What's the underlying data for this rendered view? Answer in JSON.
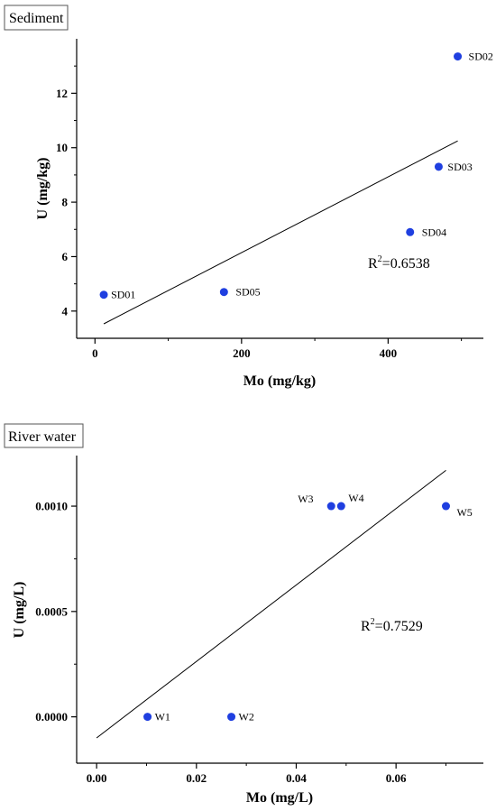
{
  "chart_data": [
    {
      "type": "scatter",
      "panel_label": "Sediment",
      "xlabel": "Mo (mg/kg)",
      "ylabel": "U (mg/kg)",
      "xlim": [
        -25,
        530
      ],
      "ylim": [
        3.0,
        14.0
      ],
      "x_ticks": [
        0,
        200,
        400
      ],
      "x_tick_labels": [
        "0",
        "200",
        "400"
      ],
      "y_ticks": [
        4,
        6,
        8,
        10,
        12
      ],
      "y_tick_labels": [
        "4",
        "6",
        "8",
        "10",
        "12"
      ],
      "points": [
        {
          "label": "SD01",
          "x": 12,
          "y": 4.6
        },
        {
          "label": "SD05",
          "x": 176,
          "y": 4.7
        },
        {
          "label": "SD04",
          "x": 430,
          "y": 6.9
        },
        {
          "label": "SD03",
          "x": 469,
          "y": 9.3
        },
        {
          "label": "SD02",
          "x": 495,
          "y": 13.35
        }
      ],
      "fit_line": {
        "x": [
          12,
          495
        ],
        "y": [
          3.53,
          10.25
        ]
      },
      "r2_prefix": "R",
      "r2_sup": "2",
      "r2_value": "=0.6538",
      "marker_color": "#1f3fe0"
    },
    {
      "type": "scatter",
      "panel_label": "River water",
      "xlabel": "Mo (mg/L)",
      "ylabel": "U (mg/L)",
      "xlim": [
        -0.004,
        0.0775
      ],
      "ylim": [
        -0.00022,
        0.00124
      ],
      "x_ticks": [
        0.0,
        0.02,
        0.04,
        0.06
      ],
      "x_tick_labels": [
        "0.00",
        "0.02",
        "0.04",
        "0.06"
      ],
      "y_ticks": [
        0.0,
        0.0005,
        0.001
      ],
      "y_tick_labels": [
        "0.0000",
        "0.0005",
        "0.0010"
      ],
      "points": [
        {
          "label": "W1",
          "x": 0.0102,
          "y": 0.0
        },
        {
          "label": "W2",
          "x": 0.027,
          "y": 0.0
        },
        {
          "label": "W3",
          "x": 0.047,
          "y": 0.001
        },
        {
          "label": "W4",
          "x": 0.049,
          "y": 0.001
        },
        {
          "label": "W5",
          "x": 0.07,
          "y": 0.001
        }
      ],
      "fit_line": {
        "x": [
          0.0,
          0.07
        ],
        "y": [
          -0.0001,
          0.00117
        ]
      },
      "r2_prefix": "R",
      "r2_sup": "2",
      "r2_value": "=0.7529",
      "marker_color": "#1f3fe0"
    }
  ]
}
